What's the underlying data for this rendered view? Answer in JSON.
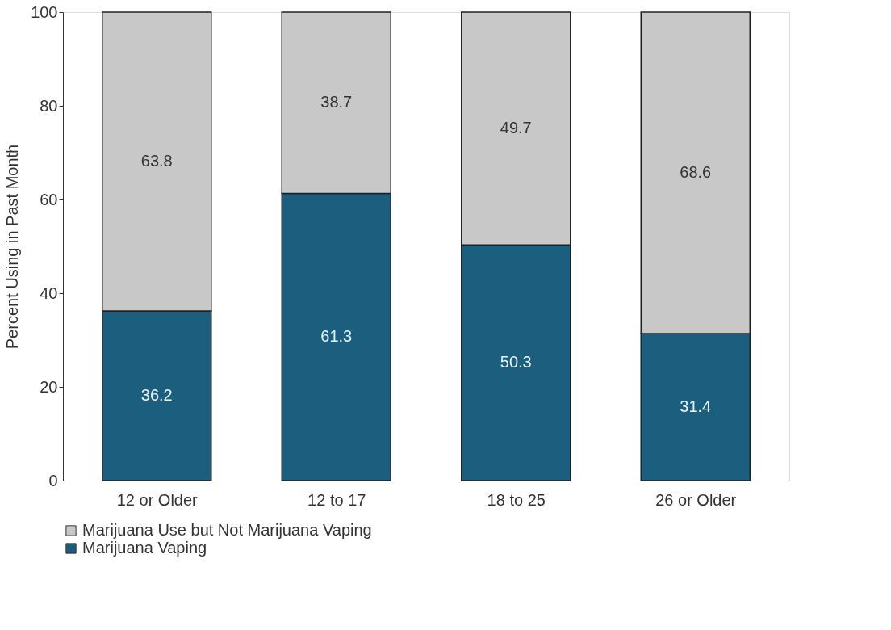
{
  "chart_data": {
    "type": "bar",
    "stacked": true,
    "ylabel": "Percent Using in Past Month",
    "categories": [
      "12 or Older",
      "12 to 17",
      "18 to 25",
      "26 or Older"
    ],
    "series": [
      {
        "name": "Marijuana Vaping",
        "color": "#1b5e7e",
        "values": [
          36.2,
          61.3,
          50.3,
          31.4
        ]
      },
      {
        "name": "Marijuana Use but Not Marijuana Vaping",
        "color": "#c8c8c8",
        "values": [
          63.8,
          38.7,
          49.7,
          68.6
        ]
      }
    ],
    "ylim": [
      0,
      100
    ],
    "yticks": [
      0,
      20,
      40,
      60,
      80,
      100
    ],
    "data_labels": true,
    "legend": "bottom",
    "grid": false
  }
}
